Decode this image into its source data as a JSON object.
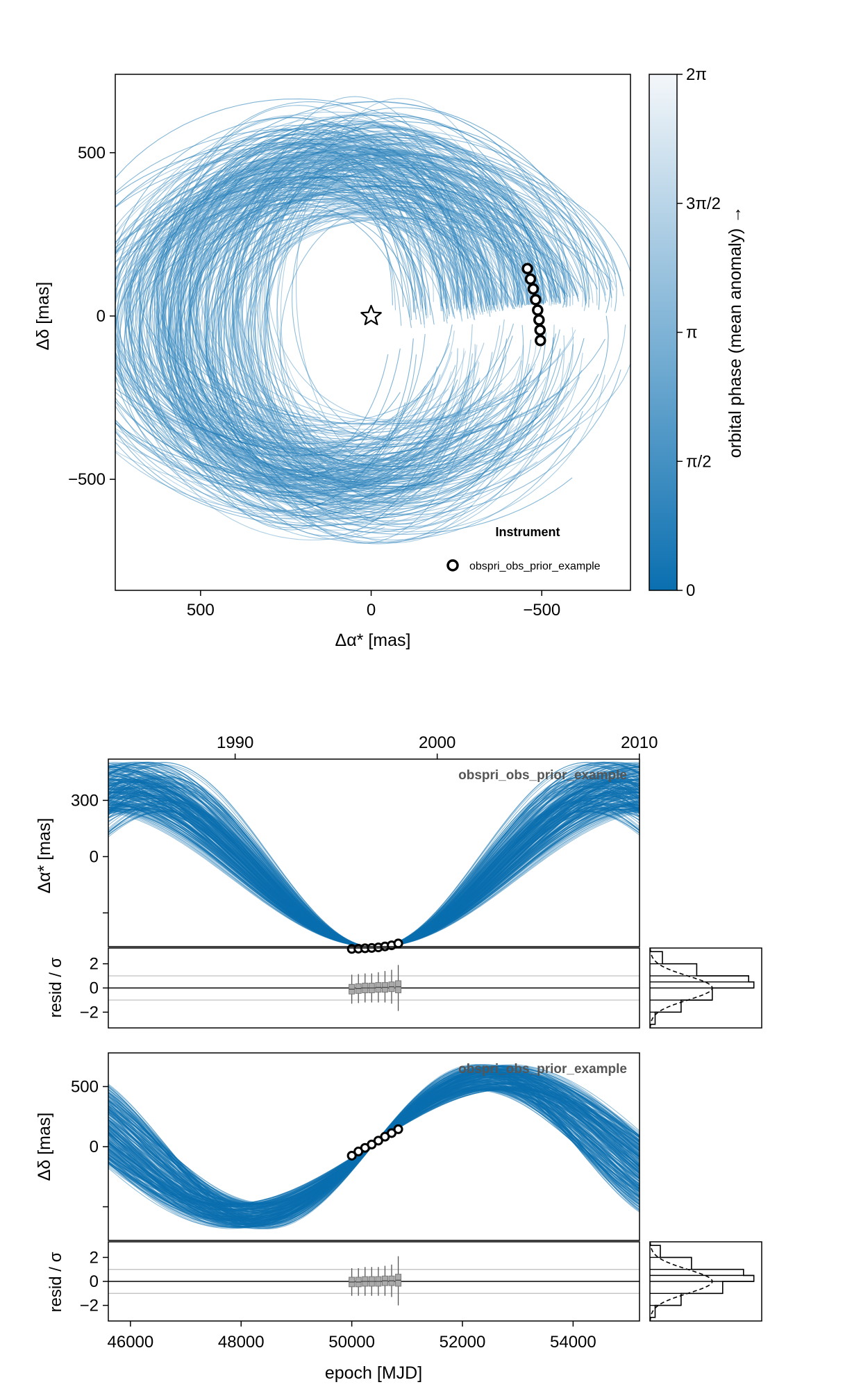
{
  "chart_data": [
    {
      "type": "line",
      "title": "",
      "xlabel": "Δα* [mas]",
      "ylabel": "Δδ [mas]",
      "xlim": [
        750,
        -760
      ],
      "ylim": [
        -840,
        740
      ],
      "x_ticks": [
        500,
        0,
        -500
      ],
      "x_tick_labels": [
        "500",
        "0",
        "−500"
      ],
      "y_ticks": [
        500,
        0,
        -500
      ],
      "y_tick_labels": [
        "500",
        "0",
        "−500"
      ],
      "star": {
        "x": 0,
        "y": 0
      },
      "orbit_samples": {
        "description_count": 300,
        "center_x_range": [
          -110,
          260
        ],
        "center_y_range": [
          -110,
          90
        ],
        "semi_axis_a_range": [
          300,
          710
        ],
        "semi_axis_b_range": [
          380,
          600
        ],
        "pass_near": {
          "x": -470,
          "y": 35
        }
      },
      "series": [
        {
          "name": "obspri_obs_prior_example",
          "points": [
            {
              "x": -458,
              "y": 145
            },
            {
              "x": -467,
              "y": 113
            },
            {
              "x": -475,
              "y": 83
            },
            {
              "x": -482,
              "y": 50
            },
            {
              "x": -488,
              "y": 18
            },
            {
              "x": -492,
              "y": -12
            },
            {
              "x": -495,
              "y": -43
            },
            {
              "x": -496,
              "y": -75
            }
          ]
        }
      ],
      "legend": {
        "title": "Instrument",
        "entries": [
          "obspri_obs_prior_example"
        ],
        "position": "bottom-right"
      },
      "colorbar": {
        "label": "orbital phase (mean anomaly) →",
        "range": [
          0,
          6.2832
        ],
        "tick_values": [
          0,
          1.5708,
          3.1416,
          4.7124,
          6.2832
        ],
        "tick_labels": [
          "0",
          "π/2",
          "π",
          "3π/2",
          "2π"
        ],
        "color_low": "#0a6fb0",
        "color_high": "#f4f7fa"
      },
      "grid": false
    },
    {
      "type": "line",
      "title": "obspri_obs_prior_example",
      "xlabel": "",
      "ylabel": "Δα* [mas]",
      "xlim": [
        45600,
        55200
      ],
      "ylim": [
        -480,
        520
      ],
      "y_ticks": [
        300,
        0,
        -300
      ],
      "y_tick_labels": [
        "300",
        "0",
        ""
      ],
      "top_axis": {
        "ticks_mjd": [
          47892,
          51544,
          55197
        ],
        "tick_labels": [
          "1990",
          "2000",
          "2010"
        ]
      },
      "observations": [
        {
          "x": 50000,
          "y": -492
        },
        {
          "x": 50120,
          "y": -491
        },
        {
          "x": 50240,
          "y": -489
        },
        {
          "x": 50360,
          "y": -487
        },
        {
          "x": 50480,
          "y": -484
        },
        {
          "x": 50600,
          "y": -479
        },
        {
          "x": 50720,
          "y": -473
        },
        {
          "x": 50840,
          "y": -463
        }
      ],
      "color": "#0a6fb0"
    },
    {
      "type": "scatter",
      "xlabel": "",
      "ylabel": "resid / σ",
      "xlim": [
        45600,
        55200
      ],
      "ylim": [
        -3.3,
        3.3
      ],
      "y_ticks": [
        2,
        0,
        -2
      ],
      "y_tick_labels": [
        "2",
        "0",
        "−2"
      ],
      "reference_lines": [
        -1,
        0,
        1
      ],
      "points": [
        {
          "x": 50000,
          "median": -0.1,
          "q1": -0.5,
          "q3": 0.3,
          "low": -1.3,
          "high": 1.1
        },
        {
          "x": 50120,
          "median": -0.05,
          "q1": -0.45,
          "q3": 0.35,
          "low": -1.25,
          "high": 1.15
        },
        {
          "x": 50240,
          "median": 0.0,
          "q1": -0.4,
          "q3": 0.4,
          "low": -1.2,
          "high": 1.2
        },
        {
          "x": 50360,
          "median": 0.0,
          "q1": -0.4,
          "q3": 0.4,
          "low": -1.2,
          "high": 1.2
        },
        {
          "x": 50480,
          "median": 0.05,
          "q1": -0.35,
          "q3": 0.45,
          "low": -1.2,
          "high": 1.3
        },
        {
          "x": 50600,
          "median": 0.05,
          "q1": -0.35,
          "q3": 0.45,
          "low": -1.2,
          "high": 1.4
        },
        {
          "x": 50720,
          "median": 0.1,
          "q1": -0.3,
          "q3": 0.5,
          "low": -1.3,
          "high": 1.5
        },
        {
          "x": 50840,
          "median": 0.1,
          "q1": -0.4,
          "q3": 0.6,
          "low": -1.9,
          "high": 1.9
        }
      ]
    },
    {
      "type": "bar",
      "orientation": "horizontal",
      "ylim": [
        -3.3,
        3.3
      ],
      "bin_edges": [
        -3,
        -2,
        -1,
        0,
        0.5,
        1,
        2,
        3
      ],
      "counts": [
        0.05,
        0.3,
        0.6,
        1.0,
        0.95,
        0.45,
        0.12
      ],
      "reference_curve": "normal",
      "ylabel": ""
    },
    {
      "type": "line",
      "title": "obspri_obs_prior_example",
      "xlabel": "",
      "ylabel": "Δδ [mas]",
      "xlim": [
        45600,
        55200
      ],
      "ylim": [
        -780,
        780
      ],
      "y_ticks": [
        500,
        0,
        -500
      ],
      "y_tick_labels": [
        "500",
        "0",
        ""
      ],
      "observations": [
        {
          "x": 50000,
          "y": -75
        },
        {
          "x": 50120,
          "y": -40
        },
        {
          "x": 50240,
          "y": -10
        },
        {
          "x": 50360,
          "y": 18
        },
        {
          "x": 50480,
          "y": 50
        },
        {
          "x": 50600,
          "y": 83
        },
        {
          "x": 50720,
          "y": 113
        },
        {
          "x": 50840,
          "y": 145
        }
      ],
      "color": "#0a6fb0"
    },
    {
      "type": "scatter",
      "xlabel": "epoch [MJD]",
      "ylabel": "resid / σ",
      "xlim": [
        45600,
        55200
      ],
      "ylim": [
        -3.3,
        3.3
      ],
      "x_ticks": [
        46000,
        48000,
        50000,
        52000,
        54000
      ],
      "x_tick_labels": [
        "46000",
        "48000",
        "50000",
        "52000",
        "54000"
      ],
      "y_ticks": [
        2,
        0,
        -2
      ],
      "y_tick_labels": [
        "2",
        "0",
        "−2"
      ],
      "reference_lines": [
        -1,
        0,
        1
      ],
      "points": [
        {
          "x": 50000,
          "median": -0.05,
          "q1": -0.45,
          "q3": 0.35,
          "low": -1.2,
          "high": 1.1
        },
        {
          "x": 50120,
          "median": -0.05,
          "q1": -0.45,
          "q3": 0.35,
          "low": -1.2,
          "high": 1.1
        },
        {
          "x": 50240,
          "median": 0.0,
          "q1": -0.4,
          "q3": 0.4,
          "low": -1.2,
          "high": 1.2
        },
        {
          "x": 50360,
          "median": 0.0,
          "q1": -0.4,
          "q3": 0.4,
          "low": -1.2,
          "high": 1.2
        },
        {
          "x": 50480,
          "median": 0.0,
          "q1": -0.4,
          "q3": 0.4,
          "low": -1.2,
          "high": 1.2
        },
        {
          "x": 50600,
          "median": 0.05,
          "q1": -0.35,
          "q3": 0.45,
          "low": -1.2,
          "high": 1.3
        },
        {
          "x": 50720,
          "median": 0.05,
          "q1": -0.35,
          "q3": 0.45,
          "low": -1.3,
          "high": 1.4
        },
        {
          "x": 50840,
          "median": 0.1,
          "q1": -0.4,
          "q3": 0.6,
          "low": -2.0,
          "high": 2.1
        }
      ]
    },
    {
      "type": "bar",
      "orientation": "horizontal",
      "ylim": [
        -3.3,
        3.3
      ],
      "bin_edges": [
        -3,
        -2,
        -1,
        0,
        0.5,
        1,
        2,
        3
      ],
      "counts": [
        0.05,
        0.3,
        0.7,
        1.0,
        0.9,
        0.4,
        0.1
      ],
      "reference_curve": "normal",
      "ylabel": ""
    }
  ]
}
